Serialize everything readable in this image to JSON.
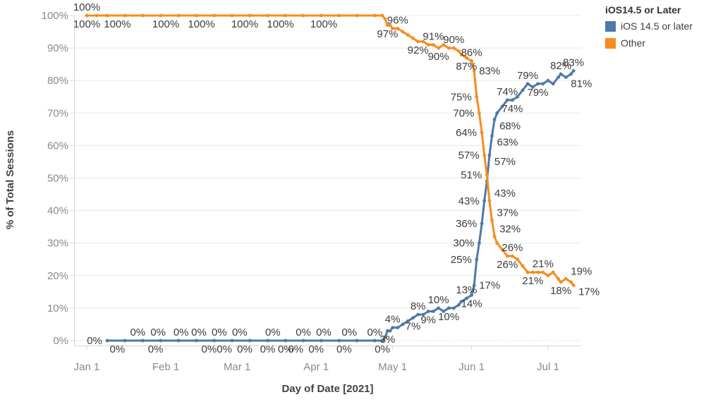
{
  "legend": {
    "title": "iOS14.5 or Later",
    "items": [
      {
        "label": "iOS 14.5 or later",
        "color": "#4e79a7"
      },
      {
        "label": "Other",
        "color": "#f68c1e"
      }
    ]
  },
  "chart_data": {
    "type": "line",
    "title": "",
    "xlabel": "Day of Date [2021]",
    "ylabel": "% of Total Sessions",
    "x_unit": "days since Jan 1 2021",
    "ylim": [
      0,
      100
    ],
    "grid": true,
    "legend_position": "top-right",
    "x_ticks": [
      {
        "d": 0,
        "label": "Jan 1"
      },
      {
        "d": 31,
        "label": "Feb 1"
      },
      {
        "d": 59,
        "label": "Mar 1"
      },
      {
        "d": 90,
        "label": "Apr 1"
      },
      {
        "d": 120,
        "label": "May 1"
      },
      {
        "d": 151,
        "label": "Jun 1"
      },
      {
        "d": 181,
        "label": "Jul 1"
      }
    ],
    "y_ticks": [
      {
        "v": 0,
        "label": "0%"
      },
      {
        "v": 10,
        "label": "10%"
      },
      {
        "v": 20,
        "label": "20%"
      },
      {
        "v": 30,
        "label": "30%"
      },
      {
        "v": 40,
        "label": "40%"
      },
      {
        "v": 50,
        "label": "50%"
      },
      {
        "v": 60,
        "label": "60%"
      },
      {
        "v": 70,
        "label": "70%"
      },
      {
        "v": 80,
        "label": "80%"
      },
      {
        "v": 90,
        "label": "90%"
      },
      {
        "v": 100,
        "label": "100%"
      }
    ],
    "series": [
      {
        "name": "iOS 14.5 or later",
        "color": "#4e79a7",
        "points": [
          [
            8,
            0
          ],
          [
            15,
            0
          ],
          [
            22,
            0
          ],
          [
            29,
            0
          ],
          [
            36,
            0
          ],
          [
            43,
            0
          ],
          [
            50,
            0
          ],
          [
            57,
            0
          ],
          [
            64,
            0
          ],
          [
            71,
            0
          ],
          [
            78,
            0
          ],
          [
            85,
            0
          ],
          [
            92,
            0
          ],
          [
            99,
            0
          ],
          [
            106,
            0
          ],
          [
            113,
            0
          ],
          [
            116,
            0
          ],
          [
            117,
            1
          ],
          [
            118,
            3
          ],
          [
            119,
            3
          ],
          [
            120,
            4
          ],
          [
            122,
            4
          ],
          [
            124,
            5
          ],
          [
            126,
            6
          ],
          [
            128,
            7
          ],
          [
            130,
            8
          ],
          [
            132,
            8
          ],
          [
            134,
            9
          ],
          [
            136,
            9
          ],
          [
            138,
            10
          ],
          [
            140,
            9
          ],
          [
            142,
            10
          ],
          [
            144,
            10
          ],
          [
            146,
            11
          ],
          [
            147,
            12
          ],
          [
            149,
            13
          ],
          [
            151,
            14
          ],
          [
            152,
            17
          ],
          [
            153,
            25
          ],
          [
            154,
            30
          ],
          [
            155,
            36
          ],
          [
            156,
            43
          ],
          [
            157,
            49
          ],
          [
            158,
            57
          ],
          [
            159,
            63
          ],
          [
            160,
            68
          ],
          [
            161,
            70
          ],
          [
            163,
            72
          ],
          [
            165,
            74
          ],
          [
            167,
            74
          ],
          [
            169,
            75
          ],
          [
            171,
            77
          ],
          [
            173,
            79
          ],
          [
            175,
            78
          ],
          [
            177,
            79
          ],
          [
            179,
            79
          ],
          [
            181,
            80
          ],
          [
            183,
            79
          ],
          [
            185,
            81
          ],
          [
            186,
            82
          ],
          [
            188,
            81
          ],
          [
            190,
            82
          ],
          [
            191,
            83
          ]
        ],
        "labels": [
          {
            "d": 8,
            "v": 0,
            "text": "0%",
            "side": "left"
          },
          {
            "d": 20,
            "v": 0,
            "text": "0%",
            "side": "above"
          },
          {
            "d": 28,
            "v": 0,
            "text": "0%",
            "side": "above"
          },
          {
            "d": 37,
            "v": 0,
            "text": "0%",
            "side": "above"
          },
          {
            "d": 44,
            "v": 0,
            "text": "0%",
            "side": "above"
          },
          {
            "d": 52,
            "v": 0,
            "text": "0%",
            "side": "above"
          },
          {
            "d": 60,
            "v": 0,
            "text": "0%",
            "side": "above"
          },
          {
            "d": 73,
            "v": 0,
            "text": "0%",
            "side": "above"
          },
          {
            "d": 85,
            "v": 0,
            "text": "0%",
            "side": "above"
          },
          {
            "d": 93,
            "v": 0,
            "text": "0%",
            "side": "above"
          },
          {
            "d": 103,
            "v": 0,
            "text": "0%",
            "side": "above"
          },
          {
            "d": 113,
            "v": 0,
            "text": "0%",
            "side": "above"
          },
          {
            "d": 12,
            "v": 0,
            "text": "0%",
            "side": "below"
          },
          {
            "d": 27,
            "v": 0,
            "text": "0%",
            "side": "below"
          },
          {
            "d": 48,
            "v": 0,
            "text": "0%",
            "side": "below"
          },
          {
            "d": 54,
            "v": 0,
            "text": "0%",
            "side": "below"
          },
          {
            "d": 62,
            "v": 0,
            "text": "0%",
            "side": "below"
          },
          {
            "d": 71,
            "v": 0,
            "text": "0%",
            "side": "below"
          },
          {
            "d": 78,
            "v": 0,
            "text": "0%",
            "side": "below"
          },
          {
            "d": 82,
            "v": 0,
            "text": "0%",
            "side": "below"
          },
          {
            "d": 90,
            "v": 0,
            "text": "0%",
            "side": "below"
          },
          {
            "d": 101,
            "v": 0,
            "text": "0%",
            "side": "below"
          },
          {
            "d": 116,
            "v": 0,
            "text": "0%",
            "side": "below"
          },
          {
            "d": 118,
            "v": 3,
            "text": "3%",
            "side": "below"
          },
          {
            "d": 120,
            "v": 4,
            "text": "4%",
            "side": "above"
          },
          {
            "d": 128,
            "v": 7,
            "text": "7%",
            "side": "below"
          },
          {
            "d": 130,
            "v": 8,
            "text": "8%",
            "side": "above"
          },
          {
            "d": 134,
            "v": 9,
            "text": "9%",
            "side": "below"
          },
          {
            "d": 138,
            "v": 10,
            "text": "10%",
            "side": "above"
          },
          {
            "d": 142,
            "v": 10,
            "text": "10%",
            "side": "below"
          },
          {
            "d": 149,
            "v": 13,
            "text": "13%",
            "side": "above"
          },
          {
            "d": 151,
            "v": 14,
            "text": "14%",
            "side": "below"
          },
          {
            "d": 152,
            "v": 17,
            "text": "17%",
            "side": "right"
          },
          {
            "d": 153,
            "v": 25,
            "text": "25%",
            "side": "left"
          },
          {
            "d": 154,
            "v": 30,
            "text": "30%",
            "side": "left"
          },
          {
            "d": 155,
            "v": 36,
            "text": "36%",
            "side": "left"
          },
          {
            "d": 156,
            "v": 43,
            "text": "43%",
            "side": "left"
          },
          {
            "d": 158,
            "v": 57,
            "text": "57%",
            "side": "downright"
          },
          {
            "d": 159,
            "v": 63,
            "text": "63%",
            "side": "downright"
          },
          {
            "d": 160,
            "v": 68,
            "text": "68%",
            "side": "downright"
          },
          {
            "d": 165,
            "v": 74,
            "text": "74%",
            "side": "above"
          },
          {
            "d": 167,
            "v": 74,
            "text": "74%",
            "side": "below"
          },
          {
            "d": 173,
            "v": 79,
            "text": "79%",
            "side": "above"
          },
          {
            "d": 177,
            "v": 79,
            "text": "79%",
            "side": "below"
          },
          {
            "d": 186,
            "v": 82,
            "text": "82%",
            "side": "above"
          },
          {
            "d": 188,
            "v": 81,
            "text": "81%",
            "side": "downright"
          },
          {
            "d": 191,
            "v": 83,
            "text": "83%",
            "side": "above"
          }
        ]
      },
      {
        "name": "Other",
        "color": "#f68c1e",
        "points": [
          [
            0,
            100
          ],
          [
            4,
            100
          ],
          [
            8,
            100
          ],
          [
            15,
            100
          ],
          [
            22,
            100
          ],
          [
            29,
            100
          ],
          [
            36,
            100
          ],
          [
            43,
            100
          ],
          [
            50,
            100
          ],
          [
            57,
            100
          ],
          [
            64,
            100
          ],
          [
            71,
            100
          ],
          [
            78,
            100
          ],
          [
            85,
            100
          ],
          [
            92,
            100
          ],
          [
            99,
            100
          ],
          [
            106,
            100
          ],
          [
            113,
            100
          ],
          [
            116,
            100
          ],
          [
            117,
            99
          ],
          [
            118,
            97
          ],
          [
            119,
            97
          ],
          [
            120,
            96
          ],
          [
            122,
            96
          ],
          [
            124,
            95
          ],
          [
            126,
            94
          ],
          [
            128,
            93
          ],
          [
            130,
            92
          ],
          [
            132,
            92
          ],
          [
            134,
            91
          ],
          [
            136,
            91
          ],
          [
            138,
            90
          ],
          [
            140,
            91
          ],
          [
            142,
            90
          ],
          [
            144,
            90
          ],
          [
            146,
            89
          ],
          [
            147,
            88
          ],
          [
            149,
            87
          ],
          [
            151,
            86
          ],
          [
            152,
            83
          ],
          [
            153,
            75
          ],
          [
            154,
            70
          ],
          [
            155,
            64
          ],
          [
            156,
            57
          ],
          [
            157,
            51
          ],
          [
            158,
            43
          ],
          [
            159,
            37
          ],
          [
            160,
            32
          ],
          [
            161,
            30
          ],
          [
            163,
            28
          ],
          [
            165,
            26
          ],
          [
            167,
            26
          ],
          [
            169,
            25
          ],
          [
            171,
            23
          ],
          [
            173,
            21
          ],
          [
            175,
            21
          ],
          [
            177,
            21
          ],
          [
            179,
            21
          ],
          [
            181,
            20
          ],
          [
            183,
            21
          ],
          [
            185,
            19
          ],
          [
            186,
            18
          ],
          [
            188,
            19
          ],
          [
            190,
            18
          ],
          [
            191,
            17
          ]
        ],
        "labels": [
          {
            "d": 0,
            "v": 100,
            "text": "100%",
            "side": "above"
          },
          {
            "d": 0,
            "v": 100,
            "text": "100%",
            "side": "below"
          },
          {
            "d": 12,
            "v": 100,
            "text": "100%",
            "side": "below"
          },
          {
            "d": 31,
            "v": 100,
            "text": "100%",
            "side": "below"
          },
          {
            "d": 45,
            "v": 100,
            "text": "100%",
            "side": "below"
          },
          {
            "d": 62,
            "v": 100,
            "text": "100%",
            "side": "below"
          },
          {
            "d": 76,
            "v": 100,
            "text": "100%",
            "side": "below"
          },
          {
            "d": 93,
            "v": 100,
            "text": "100%",
            "side": "below"
          },
          {
            "d": 118,
            "v": 97,
            "text": "97%",
            "side": "below"
          },
          {
            "d": 122,
            "v": 96,
            "text": "96%",
            "side": "above"
          },
          {
            "d": 130,
            "v": 92,
            "text": "92%",
            "side": "below"
          },
          {
            "d": 136,
            "v": 91,
            "text": "91%",
            "side": "above"
          },
          {
            "d": 138,
            "v": 90,
            "text": "90%",
            "side": "below"
          },
          {
            "d": 144,
            "v": 90,
            "text": "90%",
            "side": "above"
          },
          {
            "d": 149,
            "v": 87,
            "text": "87%",
            "side": "below"
          },
          {
            "d": 151,
            "v": 86,
            "text": "86%",
            "side": "above"
          },
          {
            "d": 152,
            "v": 83,
            "text": "83%",
            "side": "right"
          },
          {
            "d": 153,
            "v": 75,
            "text": "75%",
            "side": "left"
          },
          {
            "d": 154,
            "v": 70,
            "text": "70%",
            "side": "left"
          },
          {
            "d": 155,
            "v": 64,
            "text": "64%",
            "side": "left"
          },
          {
            "d": 156,
            "v": 57,
            "text": "57%",
            "side": "left"
          },
          {
            "d": 157,
            "v": 51,
            "text": "51%",
            "side": "left"
          },
          {
            "d": 158,
            "v": 43,
            "text": "43%",
            "side": "upright"
          },
          {
            "d": 159,
            "v": 37,
            "text": "37%",
            "side": "upright"
          },
          {
            "d": 160,
            "v": 32,
            "text": "32%",
            "side": "upright"
          },
          {
            "d": 167,
            "v": 26,
            "text": "26%",
            "side": "above"
          },
          {
            "d": 165,
            "v": 26,
            "text": "26%",
            "side": "below"
          },
          {
            "d": 179,
            "v": 21,
            "text": "21%",
            "side": "above"
          },
          {
            "d": 175,
            "v": 21,
            "text": "21%",
            "side": "below"
          },
          {
            "d": 188,
            "v": 19,
            "text": "19%",
            "side": "upright"
          },
          {
            "d": 186,
            "v": 18,
            "text": "18%",
            "side": "below"
          },
          {
            "d": 191,
            "v": 17,
            "text": "17%",
            "side": "downright"
          }
        ]
      }
    ]
  }
}
